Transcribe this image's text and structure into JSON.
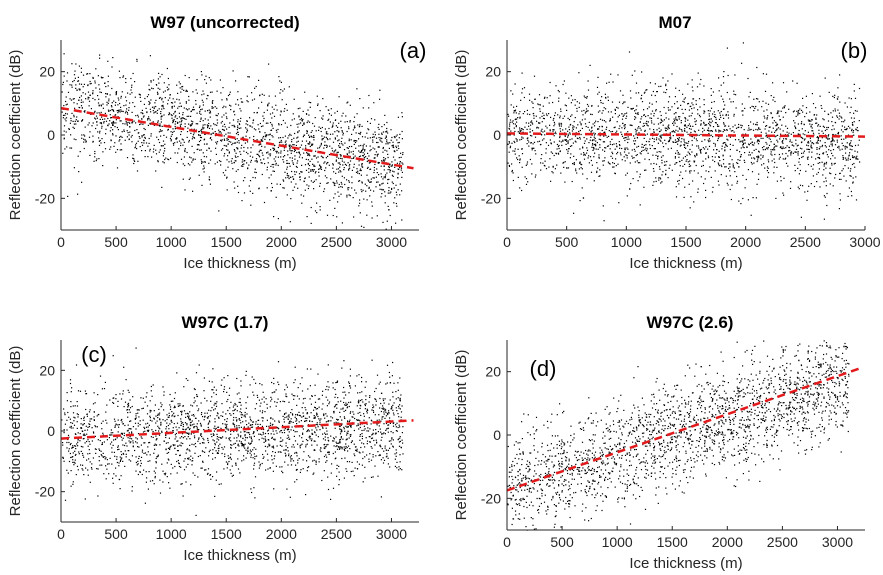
{
  "chart_data": [
    {
      "type": "scatter",
      "title": "W97 (uncorrected)",
      "panel_label": "(a)",
      "xlabel": "Ice thickness (m)",
      "ylabel": "Reflection coefficient (dB)",
      "xlim": [
        0,
        3250
      ],
      "ylim": [
        -30,
        30
      ],
      "xticks": [
        0,
        500,
        1000,
        1500,
        2000,
        2500,
        3000
      ],
      "yticks": [
        -20,
        0,
        20
      ],
      "xtick_labels": [
        "0",
        "500",
        "1000",
        "1500",
        "2000",
        "2500",
        "3000"
      ],
      "ytick_labels": [
        "-20",
        "0",
        "20"
      ],
      "fit_line": {
        "x": [
          0,
          3200
        ],
        "y": [
          8.5,
          -10.5
        ]
      },
      "scatter_cloud": {
        "x_range": [
          0,
          3100
        ],
        "center_start": 9,
        "center_end": -10,
        "spread": 8
      }
    },
    {
      "type": "scatter",
      "title": "M07",
      "panel_label": "(b)",
      "xlabel": "Ice thickness (m)",
      "ylabel": "Reflection coefficient (dB)",
      "xlim": [
        0,
        3000
      ],
      "ylim": [
        -30,
        30
      ],
      "xticks": [
        0,
        500,
        1000,
        1500,
        2000,
        2500,
        3000
      ],
      "yticks": [
        -20,
        0,
        20
      ],
      "xtick_labels": [
        "0",
        "500",
        "1000",
        "1500",
        "2000",
        "2500",
        "3000"
      ],
      "ytick_labels": [
        "-20",
        "0",
        "20"
      ],
      "fit_line": {
        "x": [
          0,
          3000
        ],
        "y": [
          0.5,
          -0.5
        ]
      },
      "scatter_cloud": {
        "x_range": [
          0,
          2950
        ],
        "center_start": 1,
        "center_end": -2,
        "spread": 8
      }
    },
    {
      "type": "scatter",
      "title": "W97C (1.7)",
      "panel_label": "(c)",
      "xlabel": "Ice thickness (m)",
      "ylabel": "Reflection coefficient (dB)",
      "xlim": [
        0,
        3250
      ],
      "ylim": [
        -30,
        30
      ],
      "xticks": [
        0,
        500,
        1000,
        1500,
        2000,
        2500,
        3000
      ],
      "yticks": [
        -20,
        0,
        20
      ],
      "xtick_labels": [
        "0",
        "500",
        "1000",
        "1500",
        "2000",
        "2500",
        "3000"
      ],
      "ytick_labels": [
        "-20",
        "0",
        "20"
      ],
      "fit_line": {
        "x": [
          0,
          3200
        ],
        "y": [
          -2.5,
          3.5
        ]
      },
      "scatter_cloud": {
        "x_range": [
          0,
          3100
        ],
        "center_start": -2,
        "center_end": 2,
        "spread": 8
      }
    },
    {
      "type": "scatter",
      "title": "W97C (2.6)",
      "panel_label": "(d)",
      "xlabel": "Ice thickness (m)",
      "ylabel": "Reflection coefficient (dB)",
      "xlim": [
        0,
        3250
      ],
      "ylim": [
        -30,
        30
      ],
      "xticks": [
        0,
        500,
        1000,
        1500,
        2000,
        2500,
        3000
      ],
      "yticks": [
        -20,
        0,
        20
      ],
      "xtick_labels": [
        "0",
        "500",
        "1000",
        "1500",
        "2000",
        "2500",
        "3000"
      ],
      "ytick_labels": [
        "-20",
        "0",
        "20"
      ],
      "fit_line": {
        "x": [
          0,
          3200
        ],
        "y": [
          -17.5,
          21
        ]
      },
      "scatter_cloud": {
        "x_range": [
          0,
          3100
        ],
        "center_start": -17,
        "center_end": 18,
        "spread": 8
      }
    }
  ],
  "colors": {
    "points": "#000000",
    "fit_line": "#e31a1c",
    "axes": "#262626"
  }
}
